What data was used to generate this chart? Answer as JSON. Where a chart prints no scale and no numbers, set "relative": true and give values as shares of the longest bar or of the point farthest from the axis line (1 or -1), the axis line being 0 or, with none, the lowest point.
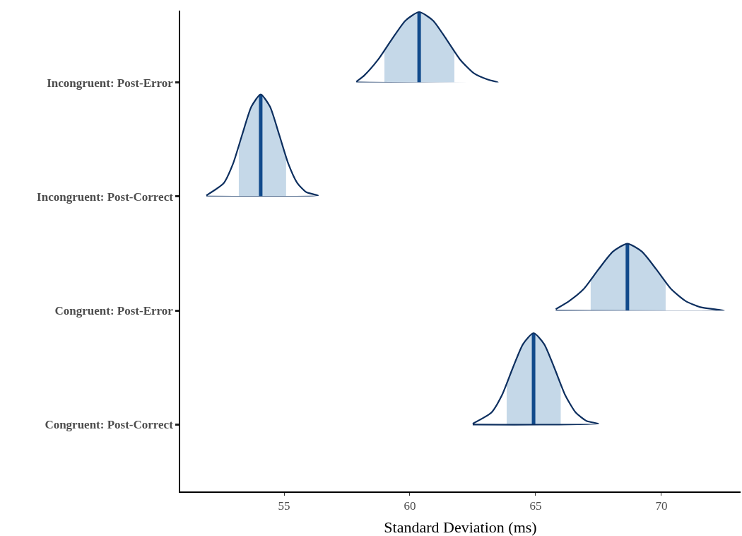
{
  "chart_data": [
    {
      "type": "line",
      "relative": true,
      "ylabel": "Incongruent: Post-Error",
      "xlim": [
        50.87,
        73.15
      ],
      "tick_labels": false,
      "series": [
        {
          "type": "area",
          "color": "#c5d8e8",
          "x": [
            58.99,
            59.28,
            59.83,
            60.37,
            60.92,
            61.46,
            61.77
          ],
          "values": [
            0.45,
            0.61,
            0.88,
            1,
            0.88,
            0.61,
            0.45
          ]
        },
        {
          "color": "#114a8b",
          "x": [
            60.37,
            60.37
          ],
          "values": [
            0,
            1
          ]
        },
        {
          "color": "#0d2f5f",
          "x": [
            57.87,
            58.19,
            58.73,
            59.28,
            59.83,
            60.37,
            60.92,
            61.46,
            62.01,
            62.55,
            63.1,
            63.5
          ],
          "values": [
            0.01,
            0.1,
            0.32,
            0.61,
            0.88,
            1,
            0.88,
            0.61,
            0.32,
            0.13,
            0.04,
            0
          ]
        }
      ]
    },
    {
      "type": "line",
      "relative": true,
      "ylabel": "Incongruent: Post-Correct",
      "xlim": [
        50.87,
        73.15
      ],
      "tick_labels": false,
      "series": [
        {
          "type": "area",
          "color": "#c5d8e8",
          "x": [
            53.2,
            53.34,
            53.7,
            54.07,
            54.44,
            54.8,
            55.08
          ],
          "values": [
            0.5,
            0.61,
            0.88,
            1,
            0.88,
            0.61,
            0.4
          ]
        },
        {
          "color": "#114a8b",
          "x": [
            54.07,
            54.07
          ],
          "values": [
            0,
            1
          ]
        },
        {
          "color": "#0d2f5f",
          "x": [
            51.91,
            52.6,
            52.97,
            53.34,
            53.7,
            54.07,
            54.44,
            54.8,
            55.17,
            55.53,
            55.9,
            56.35
          ],
          "values": [
            0.01,
            0.13,
            0.32,
            0.61,
            0.88,
            1,
            0.88,
            0.61,
            0.32,
            0.13,
            0.04,
            0.01
          ]
        }
      ]
    },
    {
      "type": "line",
      "relative": true,
      "ylabel": "Congruent: Post-Error",
      "xlim": [
        50.87,
        73.15
      ],
      "tick_labels": false,
      "series": [
        {
          "type": "area",
          "color": "#c5d8e8",
          "x": [
            67.19,
            67.49,
            68.07,
            68.65,
            69.23,
            69.81,
            70.17
          ],
          "values": [
            0.45,
            0.61,
            0.88,
            1,
            0.88,
            0.61,
            0.41
          ]
        },
        {
          "color": "#114a8b",
          "x": [
            68.65,
            68.65
          ],
          "values": [
            0,
            1
          ]
        },
        {
          "color": "#0d2f5f",
          "x": [
            65.8,
            66.33,
            66.91,
            67.49,
            68.07,
            68.65,
            69.23,
            69.81,
            70.39,
            70.97,
            71.55,
            72.5
          ],
          "values": [
            0.02,
            0.14,
            0.32,
            0.61,
            0.88,
            1,
            0.88,
            0.61,
            0.32,
            0.14,
            0.05,
            0
          ]
        }
      ]
    },
    {
      "type": "line",
      "relative": true,
      "ylabel": "Congruent: Post-Correct",
      "xlabel": "Standard Deviation (ms)",
      "xlim": [
        50.87,
        73.15
      ],
      "xticks": [
        55,
        60,
        65,
        70
      ],
      "tick_labels": "x",
      "series": [
        {
          "type": "area",
          "color": "#c5d8e8",
          "x": [
            63.85,
            64.08,
            64.5,
            64.92,
            65.34,
            65.76,
            66.0
          ],
          "values": [
            0.44,
            0.61,
            0.88,
            1,
            0.88,
            0.61,
            0.44
          ]
        },
        {
          "color": "#114a8b",
          "x": [
            64.92,
            64.92
          ],
          "values": [
            0,
            1
          ]
        },
        {
          "color": "#0d2f5f",
          "x": [
            62.5,
            63.24,
            63.66,
            64.08,
            64.5,
            64.92,
            65.34,
            65.76,
            66.18,
            66.6,
            67.02,
            67.5
          ],
          "values": [
            0.01,
            0.13,
            0.32,
            0.61,
            0.88,
            1,
            0.88,
            0.61,
            0.32,
            0.13,
            0.04,
            0.01
          ]
        }
      ]
    }
  ]
}
